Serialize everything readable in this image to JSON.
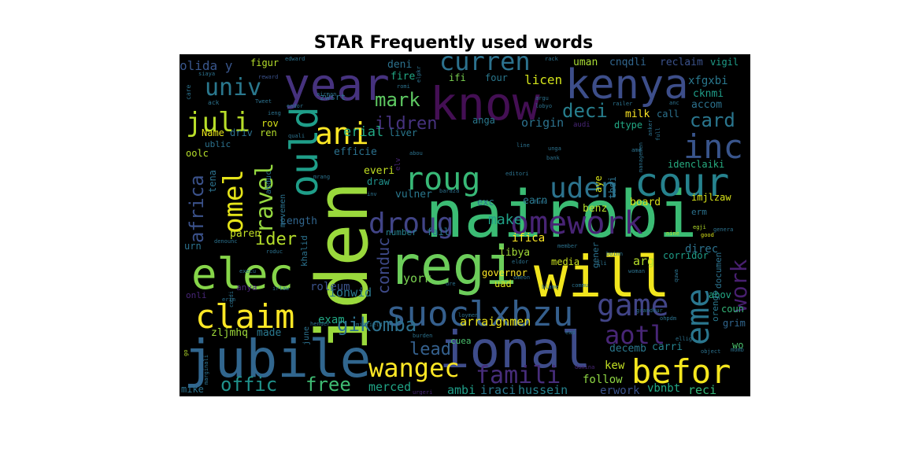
{
  "chart_data": {
    "type": "wordcloud",
    "title": "STAR Frequently used words",
    "background": "#000000",
    "colormap": "viridis",
    "words": [
      {
        "text": "nairobi",
        "weight": 100,
        "color": "#3bbc74"
      },
      {
        "text": "iden",
        "weight": 92,
        "color": "#9ad93c"
      },
      {
        "text": "regi",
        "weight": 88,
        "color": "#6ccd5a"
      },
      {
        "text": "will",
        "weight": 86,
        "color": "#f1e51d"
      },
      {
        "text": "jubile",
        "weight": 84,
        "color": "#31668e"
      },
      {
        "text": "ional",
        "weight": 80,
        "color": "#3e4c8a"
      },
      {
        "text": "know",
        "weight": 76,
        "color": "#440f54"
      },
      {
        "text": "year",
        "weight": 72,
        "color": "#46327e"
      },
      {
        "text": "kenya",
        "weight": 66,
        "color": "#3d4e8a"
      },
      {
        "text": "elec",
        "weight": 66,
        "color": "#86d549"
      },
      {
        "text": "ould",
        "weight": 64,
        "color": "#1f9e89"
      },
      {
        "text": "cour",
        "weight": 58,
        "color": "#26828e"
      },
      {
        "text": "suoclxbzu",
        "weight": 58,
        "color": "#355f8d"
      },
      {
        "text": "omework",
        "weight": 48,
        "color": "#482475"
      },
      {
        "text": "befor",
        "weight": 46,
        "color": "#f4e61e"
      },
      {
        "text": "droug",
        "weight": 46,
        "color": "#414487"
      },
      {
        "text": "roug",
        "weight": 44,
        "color": "#38b977"
      },
      {
        "text": "game",
        "weight": 44,
        "color": "#414487"
      },
      {
        "text": "claim",
        "weight": 42,
        "color": "#fde725"
      },
      {
        "text": "eme",
        "weight": 42,
        "color": "#2a768e"
      },
      {
        "text": "inc",
        "weight": 42,
        "color": "#39558c"
      },
      {
        "text": "ani",
        "weight": 42,
        "color": "#fde725"
      },
      {
        "text": "uden",
        "weight": 40,
        "color": "#2c738e"
      },
      {
        "text": "curren",
        "weight": 36,
        "color": "#2c728e"
      },
      {
        "text": "omel",
        "weight": 36,
        "color": "#e5e419"
      },
      {
        "text": "famili",
        "weight": 34,
        "color": "#472d7b"
      },
      {
        "text": "wangec",
        "weight": 34,
        "color": "#fde725"
      },
      {
        "text": "ravel",
        "weight": 32,
        "color": "#95d840"
      },
      {
        "text": "aotl",
        "weight": 32,
        "color": "#482677"
      },
      {
        "text": "univ",
        "weight": 30,
        "color": "#2a788e"
      },
      {
        "text": "juli",
        "weight": 30,
        "color": "#b8de29"
      },
      {
        "text": "work",
        "weight": 30,
        "color": "#481f70"
      },
      {
        "text": "gikomba",
        "weight": 26,
        "color": "#2d708e"
      },
      {
        "text": "lead",
        "weight": 24,
        "color": "#35608d"
      },
      {
        "text": "offic",
        "weight": 24,
        "color": "#20928c"
      },
      {
        "text": "free",
        "weight": 24,
        "color": "#3fbc73"
      },
      {
        "text": "deci",
        "weight": 24,
        "color": "#277f8e"
      },
      {
        "text": "card",
        "weight": 24,
        "color": "#2a768e"
      },
      {
        "text": "mark",
        "weight": 22,
        "color": "#5ec962"
      },
      {
        "text": "ildren",
        "weight": 22,
        "color": "#46327e"
      },
      {
        "text": "africa",
        "weight": 22,
        "color": "#3b528b"
      },
      {
        "text": "conduc",
        "weight": 20,
        "color": "#3e4a89"
      },
      {
        "text": "ider",
        "weight": 20,
        "color": "#b5de2b"
      },
      {
        "text": "make",
        "weight": 16,
        "color": "#1fa187"
      },
      {
        "text": "olida y",
        "weight": 16,
        "color": "#39568c"
      },
      {
        "text": "merced",
        "weight": 14,
        "color": "#20a486"
      },
      {
        "text": "ambi",
        "weight": 14,
        "color": "#1f9e89"
      },
      {
        "text": "iraci",
        "weight": 14,
        "color": "#2a788e"
      },
      {
        "text": "hussein",
        "weight": 14,
        "color": "#26828e"
      },
      {
        "text": "erwork",
        "weight": 14,
        "color": "#3b528b"
      },
      {
        "text": "vbnbt",
        "weight": 14,
        "color": "#22a884"
      },
      {
        "text": "reci",
        "weight": 14,
        "color": "#35b779"
      },
      {
        "text": "follow",
        "weight": 14,
        "color": "#8fd744"
      },
      {
        "text": "kew",
        "weight": 14,
        "color": "#c2df23"
      },
      {
        "text": "carri",
        "weight": 13,
        "color": "#26828e"
      },
      {
        "text": "decemb",
        "weight": 13,
        "color": "#2a788e"
      },
      {
        "text": "arraignmen",
        "weight": 14,
        "color": "#ece51b"
      },
      {
        "text": "york",
        "weight": 14,
        "color": "#7ad151"
      },
      {
        "text": "ionwid",
        "weight": 14,
        "color": "#2a788e"
      },
      {
        "text": "exam",
        "weight": 13,
        "color": "#22a884"
      },
      {
        "text": "roleum",
        "weight": 13,
        "color": "#3b528b"
      },
      {
        "text": "made",
        "weight": 12,
        "color": "#2a788e"
      },
      {
        "text": "zljmhq",
        "weight": 12,
        "color": "#9fda3a"
      },
      {
        "text": "erial",
        "weight": 16,
        "color": "#22a884"
      },
      {
        "text": "licen",
        "weight": 16,
        "color": "#d2e21b"
      },
      {
        "text": "origin",
        "weight": 14,
        "color": "#2c728e"
      },
      {
        "text": "xfgxbi",
        "weight": 14,
        "color": "#2a788e"
      },
      {
        "text": "cknmi",
        "weight": 13,
        "color": "#1f9e89"
      },
      {
        "text": "accom",
        "weight": 13,
        "color": "#2c728e"
      },
      {
        "text": "idenclaiki",
        "weight": 12,
        "color": "#27ad81"
      },
      {
        "text": "imjlzaw",
        "weight": 12,
        "color": "#d8e219"
      },
      {
        "text": "direc",
        "weight": 14,
        "color": "#2c728e"
      },
      {
        "text": "corridor",
        "weight": 12,
        "color": "#1f9e89"
      },
      {
        "text": "documen",
        "weight": 11,
        "color": "#2c728e"
      },
      {
        "text": "abov",
        "weight": 12,
        "color": "#22a884"
      },
      {
        "text": "coun",
        "weight": 12,
        "color": "#35b779"
      },
      {
        "text": "grim",
        "weight": 12,
        "color": "#31668e"
      },
      {
        "text": "orengo",
        "weight": 11,
        "color": "#2a788e"
      },
      {
        "text": "wo",
        "weight": 12,
        "color": "#4ac16d"
      },
      {
        "text": "benz",
        "weight": 12,
        "color": "#b5de2b"
      },
      {
        "text": "board",
        "weight": 12,
        "color": "#d8e219"
      },
      {
        "text": "arg",
        "weight": 14,
        "color": "#b5de2b"
      },
      {
        "text": "media",
        "weight": 12,
        "color": "#c8e020"
      },
      {
        "text": "ifica",
        "weight": 14,
        "color": "#fde725"
      },
      {
        "text": "libya",
        "weight": 13,
        "color": "#a2da37"
      },
      {
        "text": "governor",
        "weight": 12,
        "color": "#fde725"
      },
      {
        "text": "uad",
        "weight": 12,
        "color": "#d8e219"
      },
      {
        "text": "cuea",
        "weight": 11,
        "color": "#4ac16d"
      },
      {
        "text": "earn",
        "weight": 13,
        "color": "#2a788e"
      },
      {
        "text": "exc",
        "weight": 12,
        "color": "#2a788e"
      },
      {
        "text": "number",
        "weight": 11,
        "color": "#26828e"
      },
      {
        "text": "fail",
        "weight": 12,
        "color": "#2a788e"
      },
      {
        "text": "vulner",
        "weight": 13,
        "color": "#2a788e"
      },
      {
        "text": "draw",
        "weight": 12,
        "color": "#20928c"
      },
      {
        "text": "everi",
        "weight": 13,
        "color": "#c2df23"
      },
      {
        "text": "efficie",
        "weight": 13,
        "color": "#2c728e"
      },
      {
        "text": "anga",
        "weight": 12,
        "color": "#2a788e"
      },
      {
        "text": "liver",
        "weight": 12,
        "color": "#2a788e"
      },
      {
        "text": "milk",
        "weight": 13,
        "color": "#fde725"
      },
      {
        "text": "call",
        "weight": 12,
        "color": "#2c728e"
      },
      {
        "text": "dtype",
        "weight": 12,
        "color": "#22a884"
      },
      {
        "text": "aye",
        "weight": 12,
        "color": "#d8e219"
      },
      {
        "text": "tbdi",
        "weight": 12,
        "color": "#2c728e"
      },
      {
        "text": "erm",
        "weight": 11,
        "color": "#2c728e"
      },
      {
        "text": "uman",
        "weight": 13,
        "color": "#a8db34"
      },
      {
        "text": "cnqdli",
        "weight": 13,
        "color": "#31668e"
      },
      {
        "text": "reclaim",
        "weight": 13,
        "color": "#3b528b"
      },
      {
        "text": "vigil",
        "weight": 12,
        "color": "#1f9e89"
      },
      {
        "text": "ifi",
        "weight": 12,
        "color": "#7ad151"
      },
      {
        "text": "four",
        "weight": 12,
        "color": "#2a788e"
      },
      {
        "text": "fire",
        "weight": 13,
        "color": "#22a884"
      },
      {
        "text": "deni",
        "weight": 13,
        "color": "#2c728e"
      },
      {
        "text": "figur",
        "weight": 12,
        "color": "#b5de2b"
      },
      {
        "text": "rov",
        "weight": 12,
        "color": "#d8e219"
      },
      {
        "text": "Name",
        "weight": 12,
        "color": "#e5e419"
      },
      {
        "text": "driv",
        "weight": 12,
        "color": "#2c728e"
      },
      {
        "text": "ren",
        "weight": 12,
        "color": "#b5de2b"
      },
      {
        "text": "ublic",
        "weight": 11,
        "color": "#2c728e"
      },
      {
        "text": "oolc",
        "weight": 12,
        "color": "#b5de2b"
      },
      {
        "text": "zwsrt",
        "weight": 11,
        "color": "#2c728e"
      },
      {
        "text": "Length",
        "weight": 13,
        "color": "#31668e"
      },
      {
        "text": "paren",
        "weight": 13,
        "color": "#c2df23"
      },
      {
        "text": "urn",
        "weight": 12,
        "color": "#2c728e"
      },
      {
        "text": "tena",
        "weight": 12,
        "color": "#2c728e"
      },
      {
        "text": "khalid",
        "weight": 11,
        "color": "#2c728e"
      },
      {
        "text": "june",
        "weight": 10,
        "color": "#2c728e"
      },
      {
        "text": "abduc",
        "weight": 10,
        "color": "#2c728e"
      },
      {
        "text": "movemen",
        "weight": 10,
        "color": "#2c728e"
      },
      {
        "text": "anya",
        "weight": 11,
        "color": "#482677"
      },
      {
        "text": "mike",
        "weight": 12,
        "color": "#2c728e"
      },
      {
        "text": "gener",
        "weight": 11,
        "color": "#2c728e"
      },
      {
        "text": "onli",
        "weight": 11,
        "color": "#482677"
      },
      {
        "text": "edward",
        "weight": 7,
        "color": "#2c728e"
      },
      {
        "text": "siaya",
        "weight": 7,
        "color": "#2c728e"
      },
      {
        "text": "reward",
        "weight": 7,
        "color": "#3b528b"
      },
      {
        "text": "care",
        "weight": 8,
        "color": "#2c728e"
      },
      {
        "text": "ack",
        "weight": 8,
        "color": "#2c728e"
      },
      {
        "text": "Tweet",
        "weight": 7,
        "color": "#2c728e"
      },
      {
        "text": "endor",
        "weight": 7,
        "color": "#2c728e"
      },
      {
        "text": "ieng",
        "weight": 7,
        "color": "#2c728e"
      },
      {
        "text": "quali",
        "weight": 7,
        "color": "#2c728e"
      },
      {
        "text": "airman",
        "weight": 7,
        "color": "#2c728e"
      },
      {
        "text": "romi",
        "weight": 7,
        "color": "#2c728e"
      },
      {
        "text": "rack",
        "weight": 7,
        "color": "#2c728e"
      },
      {
        "text": "argu",
        "weight": 7,
        "color": "#2c728e"
      },
      {
        "text": "lobyo",
        "weight": 7,
        "color": "#2c728e"
      },
      {
        "text": "audi",
        "weight": 9,
        "color": "#482677"
      },
      {
        "text": "railer",
        "weight": 7,
        "color": "#2c728e"
      },
      {
        "text": "anc",
        "weight": 7,
        "color": "#2c728e"
      },
      {
        "text": "line",
        "weight": 7,
        "color": "#2c728e"
      },
      {
        "text": "unga",
        "weight": 7,
        "color": "#2c728e"
      },
      {
        "text": "bank",
        "weight": 7,
        "color": "#2c728e"
      },
      {
        "text": "editori",
        "weight": 7,
        "color": "#2c728e"
      },
      {
        "text": "mrang",
        "weight": 7,
        "color": "#2c728e"
      },
      {
        "text": "abou",
        "weight": 7,
        "color": "#2c728e"
      },
      {
        "text": "inv",
        "weight": 7,
        "color": "#2c728e"
      },
      {
        "text": "baraza",
        "weight": 7,
        "color": "#2c728e"
      },
      {
        "text": "fund",
        "weight": 7,
        "color": "#2c728e"
      },
      {
        "text": "genera",
        "weight": 7,
        "color": "#2c728e"
      },
      {
        "text": "egji",
        "weight": 7,
        "color": "#b5de2b"
      },
      {
        "text": "good",
        "weight": 7,
        "color": "#d8e219"
      },
      {
        "text": "nine",
        "weight": 7,
        "color": "#b5de2b"
      },
      {
        "text": "member",
        "weight": 7,
        "color": "#2c728e"
      },
      {
        "text": "boinn",
        "weight": 7,
        "color": "#2c728e"
      },
      {
        "text": "fli",
        "weight": 7,
        "color": "#2c728e"
      },
      {
        "text": "woman",
        "weight": 7,
        "color": "#2c728e"
      },
      {
        "text": "eldor",
        "weight": 7,
        "color": "#2c728e"
      },
      {
        "text": "omeon",
        "weight": 7,
        "color": "#2c728e"
      },
      {
        "text": "blame",
        "weight": 7,
        "color": "#2c728e"
      },
      {
        "text": "commu",
        "weight": 7,
        "color": "#2c728e"
      },
      {
        "text": "ure",
        "weight": 7,
        "color": "#2c728e"
      },
      {
        "text": "loymen",
        "weight": 7,
        "color": "#2c728e"
      },
      {
        "text": "ead",
        "weight": 7,
        "color": "#2c728e"
      },
      {
        "text": "ohpdm",
        "weight": 7,
        "color": "#2c728e"
      },
      {
        "text": "grandeur",
        "weight": 7,
        "color": "#2c728e"
      },
      {
        "text": "ellig",
        "weight": 7,
        "color": "#2c728e"
      },
      {
        "text": "object",
        "weight": 7,
        "color": "#2c728e"
      },
      {
        "text": "burden",
        "weight": 7,
        "color": "#2c728e"
      },
      {
        "text": "midfield",
        "weight": 7,
        "color": "#2c728e"
      },
      {
        "text": "hender",
        "weight": 7,
        "color": "#2c728e"
      },
      {
        "text": "urgeri",
        "weight": 7,
        "color": "#482677"
      },
      {
        "text": "domina",
        "weight": 7,
        "color": "#482677"
      },
      {
        "text": "irlaw",
        "weight": 7,
        "color": "#2c728e"
      },
      {
        "text": "erim",
        "weight": 7,
        "color": "#2c728e"
      },
      {
        "text": "condi",
        "weight": 7,
        "color": "#2c728e"
      },
      {
        "text": "execu",
        "weight": 7,
        "color": "#2c728e"
      },
      {
        "text": "roduc",
        "weight": 7,
        "color": "#2c728e"
      },
      {
        "text": "denounc",
        "weight": 7,
        "color": "#2c728e"
      },
      {
        "text": "marginali",
        "weight": 7,
        "color": "#2c728e"
      },
      {
        "text": "go",
        "weight": 7,
        "color": "#b5de2b"
      },
      {
        "text": "elv",
        "weight": 9,
        "color": "#482677"
      },
      {
        "text": "ame",
        "weight": 7,
        "color": "#2c728e"
      },
      {
        "text": "managemen",
        "weight": 7,
        "color": "#2c728e"
      },
      {
        "text": "anker",
        "weight": 7,
        "color": "#2c728e"
      },
      {
        "text": "full",
        "weight": 7,
        "color": "#2c728e"
      },
      {
        "text": "quwa",
        "weight": 7,
        "color": "#2c728e"
      },
      {
        "text": "momb",
        "weight": 7,
        "color": "#2c728e"
      },
      {
        "text": "elpkr",
        "weight": 7,
        "color": "#2c728e"
      }
    ]
  }
}
